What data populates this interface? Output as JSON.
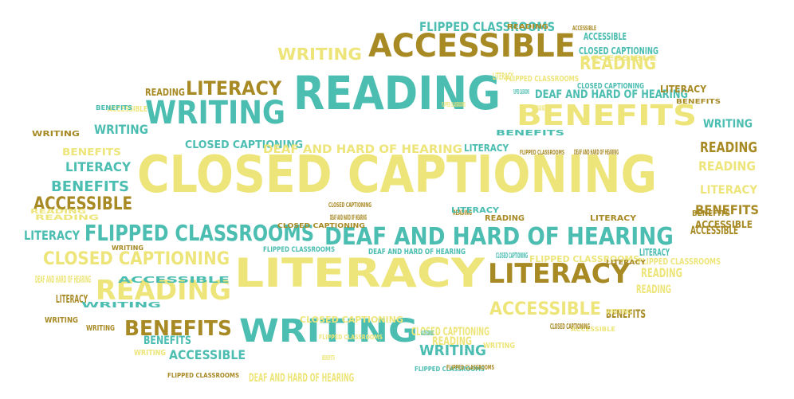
{
  "colors": {
    "yellow": "#ede57a",
    "teal": "#4bbdb1",
    "olive": "#a88a25"
  },
  "words": [
    {
      "text": "CLOSED CAPTIONING",
      "color": "yellow"
    },
    {
      "text": "READING",
      "color": "teal"
    },
    {
      "text": "LITERACY",
      "color": "yellow"
    },
    {
      "text": "ACCESSIBLE",
      "color": "olive"
    },
    {
      "text": "BENEFITS",
      "color": "yellow"
    },
    {
      "text": "WRITING",
      "color": "teal"
    },
    {
      "text": "WRITING",
      "color": "teal"
    },
    {
      "text": "DEAF AND HARD OF HEARING",
      "color": "teal"
    },
    {
      "text": "FLIPPED CLASSROOMS",
      "color": "teal"
    },
    {
      "text": "LITERACY",
      "color": "olive"
    },
    {
      "text": "READING",
      "color": "yellow"
    },
    {
      "text": "CLOSED CAPTIONING",
      "color": "yellow"
    },
    {
      "text": "BENEFITS",
      "color": "olive"
    },
    {
      "text": "LITERACY",
      "color": "olive"
    },
    {
      "text": "READING",
      "color": "yellow"
    },
    {
      "text": "ACCESSIBLE",
      "color": "yellow"
    },
    {
      "text": "WRITING",
      "color": "yellow"
    },
    {
      "text": "ACCESSIBLE",
      "color": "olive"
    },
    {
      "text": "BENEFITS",
      "color": "teal"
    },
    {
      "text": "LITERACY",
      "color": "teal"
    },
    {
      "text": "ACCESSIBLE",
      "color": "teal"
    },
    {
      "text": "CLOSED CAPTIONING",
      "color": "teal"
    },
    {
      "text": "FLIPPED CLASSROOMS",
      "color": "teal"
    },
    {
      "text": "DEAF AND HARD OF HEARING",
      "color": "teal"
    },
    {
      "text": "READING",
      "color": "olive"
    },
    {
      "text": "WRITING",
      "color": "teal"
    },
    {
      "text": "READING",
      "color": "yellow"
    },
    {
      "text": "LITERACY",
      "color": "yellow"
    },
    {
      "text": "BENEFITS",
      "color": "olive"
    },
    {
      "text": "ACCESSIBLE",
      "color": "olive"
    },
    {
      "text": "CLOSED CAPTIONING",
      "color": "teal"
    },
    {
      "text": "LITERACY",
      "color": "teal"
    },
    {
      "text": "BENEFITS",
      "color": "yellow"
    },
    {
      "text": "WRITING",
      "color": "teal"
    },
    {
      "text": "READING",
      "color": "olive"
    },
    {
      "text": "ACCESSIBLE",
      "color": "yellow"
    },
    {
      "text": "FLIPPED CLASSROOMS",
      "color": "yellow"
    },
    {
      "text": "CLOSED CAPTIONING",
      "color": "teal"
    },
    {
      "text": "BENEFITS",
      "color": "teal"
    },
    {
      "text": "WRITING",
      "color": "olive"
    },
    {
      "text": "ACCESSIBLE",
      "color": "teal"
    },
    {
      "text": "READING",
      "color": "yellow"
    },
    {
      "text": "LITERACY",
      "color": "teal"
    },
    {
      "text": "FLIPPED CLASSROOMS",
      "color": "yellow"
    },
    {
      "text": "DEAF AND HARD OF HEARING",
      "color": "yellow"
    },
    {
      "text": "CLOSED CAPTIONING",
      "color": "yellow"
    },
    {
      "text": "LITERACY",
      "color": "olive"
    },
    {
      "text": "WRITING",
      "color": "olive"
    },
    {
      "text": "READING",
      "color": "yellow"
    },
    {
      "text": "BENEFITS",
      "color": "teal"
    },
    {
      "text": "ACCESSIBLE",
      "color": "teal"
    },
    {
      "text": "WRITING",
      "color": "yellow"
    },
    {
      "text": "DEAF AND HARD OF HEARING",
      "color": "yellow"
    },
    {
      "text": "LITERACY",
      "color": "teal"
    },
    {
      "text": "FLIPPED CLASSROOMS",
      "color": "yellow"
    },
    {
      "text": "CLOSED CAPTIONING",
      "color": "yellow"
    },
    {
      "text": "WRITING",
      "color": "teal"
    },
    {
      "text": "READING",
      "color": "yellow"
    },
    {
      "text": "BENEFITS",
      "color": "olive"
    },
    {
      "text": "LITERACY",
      "color": "olive"
    },
    {
      "text": "ACCESSIBLE",
      "color": "olive"
    },
    {
      "text": "FLIPPED CLASSROOMS",
      "color": "teal"
    },
    {
      "text": "DEAF AND HARD OF HEARING",
      "color": "teal"
    },
    {
      "text": "READING",
      "color": "olive"
    },
    {
      "text": "WRITING",
      "color": "teal"
    },
    {
      "text": "LITERACY",
      "color": "yellow"
    },
    {
      "text": "ACCESSIBLE",
      "color": "teal"
    },
    {
      "text": "FLIPPED CLASSROOMS",
      "color": "teal"
    },
    {
      "text": "DEAF AND HARD OF HEARING",
      "color": "yellow"
    },
    {
      "text": "CLOSED CAPTIONING",
      "color": "teal"
    },
    {
      "text": "BENEFITS",
      "color": "yellow"
    },
    {
      "text": "WRITING",
      "color": "yellow"
    },
    {
      "text": "LITERACY",
      "color": "teal"
    },
    {
      "text": "READING",
      "color": "olive"
    },
    {
      "text": "ACCESSIBLE",
      "color": "yellow"
    },
    {
      "text": "FLIPPED CLASSROOMS",
      "color": "yellow"
    },
    {
      "text": "DEAF AND HARD OF HEARING",
      "color": "yellow"
    },
    {
      "text": "CLOSED CAPTIONING",
      "color": "olive"
    },
    {
      "text": "READING",
      "color": "yellow"
    },
    {
      "text": "LITERACY",
      "color": "olive"
    },
    {
      "text": "BENEFITS",
      "color": "olive"
    },
    {
      "text": "FLIPPED CLASSROOMS",
      "color": "teal"
    },
    {
      "text": "WRITING",
      "color": "olive"
    },
    {
      "text": "DEAF AND HARD OF HEARING",
      "color": "olive"
    },
    {
      "text": "FLIPPED CLASSROOMS",
      "color": "olive"
    },
    {
      "text": "WRITING",
      "color": "yellow"
    },
    {
      "text": "CLOSED CAPTIONING",
      "color": "olive"
    },
    {
      "text": "DEAF AND HARD OF HEARING",
      "color": "olive"
    },
    {
      "text": "ACCESSIBLE",
      "color": "yellow"
    },
    {
      "text": "FLIPPED CLASSROOMS",
      "color": "olive"
    },
    {
      "text": "WRITING",
      "color": "olive"
    },
    {
      "text": "READING",
      "color": "yellow"
    },
    {
      "text": "BENEFITS",
      "color": "olive"
    },
    {
      "text": "FLIPPED CLASSROOMS",
      "color": "olive"
    },
    {
      "text": "READING",
      "color": "olive"
    },
    {
      "text": "ACCESSIBLE",
      "color": "olive"
    },
    {
      "text": "LITERACY",
      "color": "olive"
    },
    {
      "text": "FLIPPED CLASSROOMS",
      "color": "yellow"
    },
    {
      "text": "CLOSED CAPTIONING",
      "color": "olive"
    },
    {
      "text": "BENEFITS",
      "color": "teal"
    }
  ]
}
